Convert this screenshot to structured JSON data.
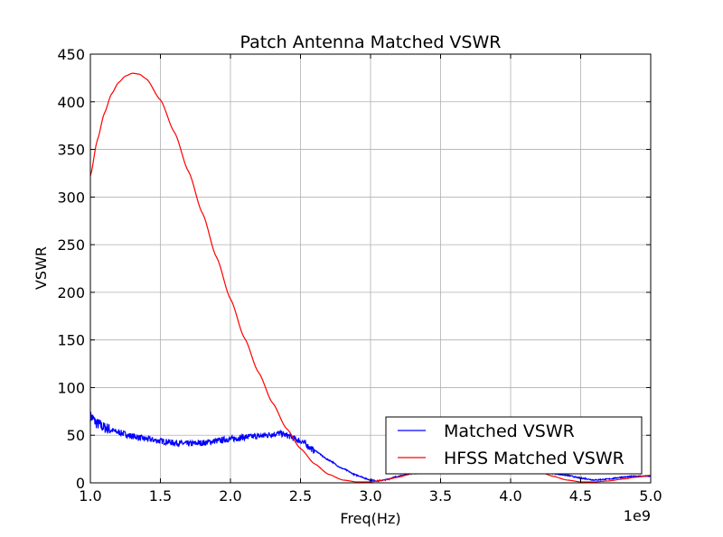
{
  "chart_data": {
    "type": "line",
    "title": "Patch Antenna Matched VSWR",
    "xlabel": "Freq(Hz)",
    "ylabel": "VSWR",
    "x_offset_label": "1e9",
    "xlim": [
      1.0,
      5.0
    ],
    "ylim": [
      0,
      450
    ],
    "x_scale": 1000000000,
    "xticks": [
      "1.0",
      "1.5",
      "2.0",
      "2.5",
      "3.0",
      "3.5",
      "4.0",
      "4.5",
      "5.0"
    ],
    "yticks": [
      "0",
      "50",
      "100",
      "150",
      "200",
      "250",
      "300",
      "350",
      "400",
      "450"
    ],
    "grid": true,
    "legend_position": "bottom-right",
    "series": [
      {
        "name": "Matched VSWR",
        "color": "#0000ff",
        "noisy": true,
        "x": [
          1.0,
          1.05,
          1.1,
          1.2,
          1.3,
          1.4,
          1.5,
          1.6,
          1.7,
          1.8,
          1.9,
          2.0,
          2.1,
          2.2,
          2.3,
          2.35,
          2.4,
          2.5,
          2.6,
          2.7,
          2.8,
          2.9,
          3.0,
          3.05,
          3.1,
          3.2,
          3.3,
          3.4,
          3.5,
          3.6,
          3.7,
          3.8,
          3.9,
          4.0,
          4.1,
          4.2,
          4.3,
          4.4,
          4.5,
          4.6,
          4.7,
          4.8,
          4.9,
          5.0
        ],
        "y": [
          70,
          62,
          58,
          53,
          49,
          46,
          44,
          42,
          41,
          42,
          44,
          46,
          48,
          49,
          51,
          52,
          50,
          44,
          34,
          24,
          15,
          8,
          3,
          2,
          3,
          7,
          10,
          13,
          15,
          17,
          18,
          18,
          17,
          16,
          14,
          12,
          10,
          8,
          5,
          3,
          4,
          6,
          7,
          7
        ]
      },
      {
        "name": "HFSS Matched VSWR",
        "color": "#ff0000",
        "noisy": false,
        "x": [
          1.0,
          1.05,
          1.1,
          1.15,
          1.2,
          1.25,
          1.3,
          1.35,
          1.4,
          1.5,
          1.6,
          1.7,
          1.8,
          1.9,
          2.0,
          2.1,
          2.2,
          2.3,
          2.4,
          2.5,
          2.6,
          2.7,
          2.8,
          2.9,
          3.0,
          3.1,
          3.2,
          3.3,
          3.4,
          3.5,
          3.6,
          3.7,
          3.8,
          3.9,
          4.0,
          4.1,
          4.2,
          4.3,
          4.4,
          4.5,
          4.6,
          4.7,
          4.8,
          4.9,
          5.0
        ],
        "y": [
          322,
          360,
          388,
          408,
          420,
          427,
          430,
          429,
          424,
          402,
          368,
          327,
          283,
          237,
          193,
          152,
          116,
          84,
          57,
          36,
          20,
          9,
          3,
          1,
          1,
          3,
          6,
          10,
          14,
          17,
          20,
          22,
          23,
          22,
          20,
          16,
          12,
          7,
          3,
          1,
          1,
          2,
          4,
          6,
          8
        ]
      }
    ]
  }
}
